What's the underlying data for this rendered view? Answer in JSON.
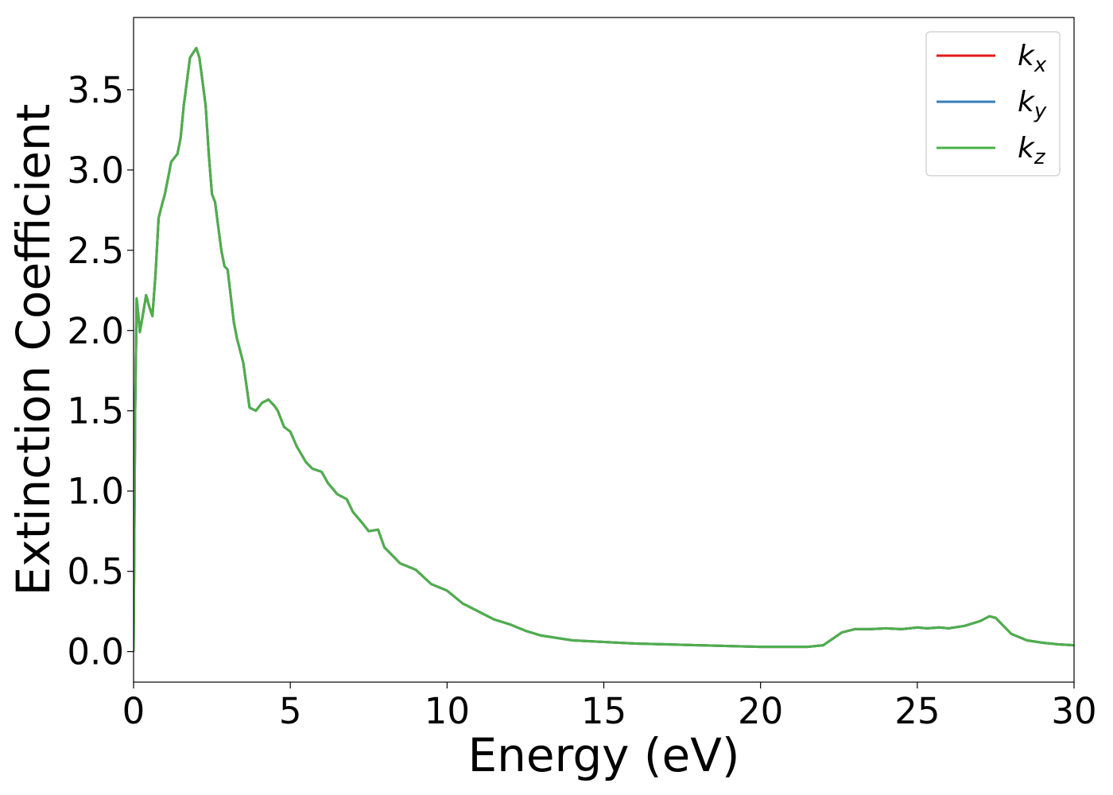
{
  "chart_data": {
    "type": "line",
    "xlabel": "Energy (eV)",
    "ylabel": "Extinction Coefficient",
    "xlim": [
      0,
      30
    ],
    "ylim": [
      -0.19,
      3.95
    ],
    "xticks": [
      0,
      5,
      10,
      15,
      20,
      25,
      30
    ],
    "xtick_labels": [
      "0",
      "5",
      "10",
      "15",
      "20",
      "25",
      "30"
    ],
    "yticks": [
      0.0,
      0.5,
      1.0,
      1.5,
      2.0,
      2.5,
      3.0,
      3.5
    ],
    "ytick_labels": [
      "0.0",
      "0.5",
      "1.0",
      "1.5",
      "2.0",
      "2.5",
      "3.0",
      "3.5"
    ],
    "grid": false,
    "legend": {
      "placement": "top-right",
      "entries": [
        {
          "base": "k",
          "sub": "x",
          "color": "#e41a1c"
        },
        {
          "base": "k",
          "sub": "y",
          "color": "#377eb8"
        },
        {
          "base": "k",
          "sub": "z",
          "color": "#4daf4a"
        }
      ]
    },
    "x": [
      0,
      0.05,
      0.1,
      0.15,
      0.2,
      0.3,
      0.4,
      0.5,
      0.6,
      0.7,
      0.8,
      0.9,
      1.0,
      1.1,
      1.2,
      1.4,
      1.5,
      1.6,
      1.8,
      2.0,
      2.1,
      2.2,
      2.3,
      2.4,
      2.5,
      2.6,
      2.8,
      2.9,
      3.0,
      3.2,
      3.3,
      3.5,
      3.7,
      3.9,
      4.1,
      4.3,
      4.5,
      4.6,
      4.8,
      5.0,
      5.2,
      5.5,
      5.7,
      6.0,
      6.2,
      6.5,
      6.8,
      7.0,
      7.3,
      7.5,
      7.8,
      8.0,
      8.5,
      9.0,
      9.5,
      10.0,
      10.5,
      11.0,
      11.5,
      12.0,
      12.5,
      13.0,
      14.0,
      15.0,
      16.0,
      17.0,
      18.0,
      19.0,
      20.0,
      21.0,
      21.5,
      22.0,
      22.3,
      22.6,
      23.0,
      23.5,
      24.0,
      24.5,
      25.0,
      25.3,
      25.7,
      26.0,
      26.5,
      27.0,
      27.3,
      27.5,
      27.7,
      28.0,
      28.5,
      29.0,
      29.5,
      30.0
    ],
    "series": [
      {
        "name": "k_x",
        "color": "#e41a1c",
        "values": [
          0.0,
          1.5,
          2.2,
          2.1,
          1.99,
          2.1,
          2.22,
          2.15,
          2.09,
          2.35,
          2.7,
          2.78,
          2.85,
          2.95,
          3.05,
          3.1,
          3.2,
          3.4,
          3.7,
          3.76,
          3.7,
          3.55,
          3.4,
          3.1,
          2.85,
          2.8,
          2.5,
          2.4,
          2.38,
          2.05,
          1.95,
          1.8,
          1.52,
          1.5,
          1.55,
          1.57,
          1.53,
          1.5,
          1.4,
          1.37,
          1.28,
          1.18,
          1.14,
          1.12,
          1.05,
          0.98,
          0.95,
          0.87,
          0.8,
          0.75,
          0.76,
          0.65,
          0.55,
          0.51,
          0.42,
          0.38,
          0.3,
          0.25,
          0.2,
          0.17,
          0.13,
          0.1,
          0.07,
          0.06,
          0.05,
          0.045,
          0.04,
          0.035,
          0.03,
          0.03,
          0.03,
          0.04,
          0.08,
          0.12,
          0.14,
          0.14,
          0.145,
          0.14,
          0.15,
          0.145,
          0.15,
          0.145,
          0.16,
          0.19,
          0.22,
          0.21,
          0.17,
          0.11,
          0.07,
          0.055,
          0.045,
          0.04
        ]
      },
      {
        "name": "k_y",
        "color": "#377eb8",
        "values": [
          0.0,
          1.5,
          2.2,
          2.1,
          1.99,
          2.1,
          2.22,
          2.15,
          2.09,
          2.35,
          2.7,
          2.78,
          2.85,
          2.95,
          3.05,
          3.1,
          3.2,
          3.4,
          3.7,
          3.76,
          3.7,
          3.55,
          3.4,
          3.1,
          2.85,
          2.8,
          2.5,
          2.4,
          2.38,
          2.05,
          1.95,
          1.8,
          1.52,
          1.5,
          1.55,
          1.57,
          1.53,
          1.5,
          1.4,
          1.37,
          1.28,
          1.18,
          1.14,
          1.12,
          1.05,
          0.98,
          0.95,
          0.87,
          0.8,
          0.75,
          0.76,
          0.65,
          0.55,
          0.51,
          0.42,
          0.38,
          0.3,
          0.25,
          0.2,
          0.17,
          0.13,
          0.1,
          0.07,
          0.06,
          0.05,
          0.045,
          0.04,
          0.035,
          0.03,
          0.03,
          0.03,
          0.04,
          0.08,
          0.12,
          0.14,
          0.14,
          0.145,
          0.14,
          0.15,
          0.145,
          0.15,
          0.145,
          0.16,
          0.19,
          0.22,
          0.21,
          0.17,
          0.11,
          0.07,
          0.055,
          0.045,
          0.04
        ]
      },
      {
        "name": "k_z",
        "color": "#4daf4a",
        "values": [
          0.0,
          1.5,
          2.2,
          2.1,
          1.99,
          2.1,
          2.22,
          2.15,
          2.09,
          2.35,
          2.7,
          2.78,
          2.85,
          2.95,
          3.05,
          3.1,
          3.2,
          3.4,
          3.7,
          3.76,
          3.7,
          3.55,
          3.4,
          3.1,
          2.85,
          2.8,
          2.5,
          2.4,
          2.38,
          2.05,
          1.95,
          1.8,
          1.52,
          1.5,
          1.55,
          1.57,
          1.53,
          1.5,
          1.4,
          1.37,
          1.28,
          1.18,
          1.14,
          1.12,
          1.05,
          0.98,
          0.95,
          0.87,
          0.8,
          0.75,
          0.76,
          0.65,
          0.55,
          0.51,
          0.42,
          0.38,
          0.3,
          0.25,
          0.2,
          0.17,
          0.13,
          0.1,
          0.07,
          0.06,
          0.05,
          0.045,
          0.04,
          0.035,
          0.03,
          0.03,
          0.03,
          0.04,
          0.08,
          0.12,
          0.14,
          0.14,
          0.145,
          0.14,
          0.15,
          0.145,
          0.15,
          0.145,
          0.16,
          0.19,
          0.22,
          0.21,
          0.17,
          0.11,
          0.07,
          0.055,
          0.045,
          0.04
        ]
      }
    ]
  }
}
